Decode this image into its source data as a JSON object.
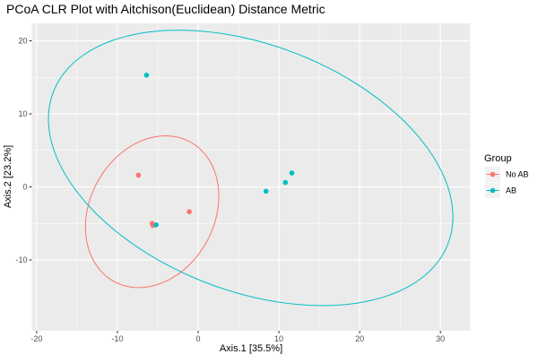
{
  "chart_data": {
    "type": "scatter",
    "title": "PCoA CLR Plot with Aitchison(Euclidean) Distance Metric",
    "xlabel": "Axis.1   [35.5%]",
    "ylabel": "Axis.2   [23.2%]",
    "xlim": [
      -20.6,
      33.7
    ],
    "ylim": [
      -19.7,
      22.4
    ],
    "x_ticks": [
      -20,
      -10,
      0,
      10,
      20,
      30
    ],
    "y_ticks": [
      -10,
      0,
      10,
      20
    ],
    "grid": true,
    "legend": {
      "title": "Group",
      "position": "right"
    },
    "series": [
      {
        "name": "No AB",
        "color": "#F8766D",
        "points": [
          {
            "x": -7.4,
            "y": 1.6
          },
          {
            "x": -5.7,
            "y": -5.0
          },
          {
            "x": -5.6,
            "y": -5.3
          },
          {
            "x": -1.1,
            "y": -3.4
          }
        ],
        "ellipse": {
          "cx": -5.7,
          "cy": -3.4,
          "rx": 10.7,
          "ry": 7.85,
          "angle_deg": 69.4
        }
      },
      {
        "name": "AB",
        "color": "#00BFC4",
        "points": [
          {
            "x": -6.4,
            "y": 15.3
          },
          {
            "x": -5.2,
            "y": -5.2
          },
          {
            "x": 8.4,
            "y": -0.6
          },
          {
            "x": 10.8,
            "y": 0.6
          },
          {
            "x": 11.6,
            "y": 1.9
          }
        ],
        "ellipse": {
          "cx": 6.5,
          "cy": 2.6,
          "rx": 26.6,
          "ry": 16.6,
          "angle_deg": -25.5
        }
      }
    ]
  }
}
